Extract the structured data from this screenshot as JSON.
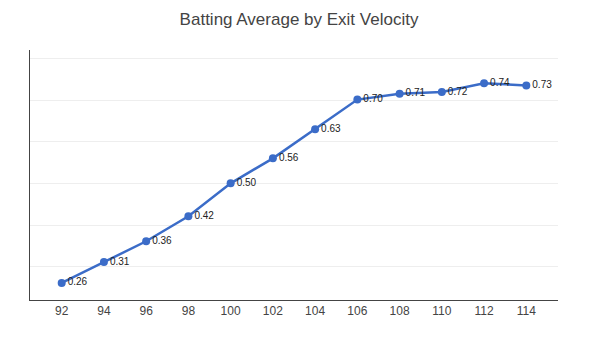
{
  "chart_data": {
    "type": "line",
    "title": "Batting Average by Exit Velocity",
    "x": [
      92,
      94,
      96,
      98,
      100,
      102,
      104,
      106,
      108,
      110,
      112,
      114
    ],
    "values": [
      0.261,
      0.311,
      0.361,
      0.421,
      0.5,
      0.56,
      0.63,
      0.701,
      0.715,
      0.719,
      0.74,
      0.735
    ],
    "value_labels": [
      "0.26",
      "0.31",
      "0.36",
      "0.42",
      "0.50",
      "0.56",
      "0.63",
      "0.70",
      "0.71",
      "0.72",
      "0.74",
      "0.73"
    ],
    "data_labels": true,
    "color": "#3B6CC8",
    "marker": "circle",
    "xlim": [
      90.5,
      115.5
    ],
    "xticks": [
      92,
      94,
      96,
      98,
      100,
      102,
      104,
      106,
      108,
      110,
      112,
      114
    ],
    "ylim": [
      0.22,
      0.82
    ],
    "yticks": [
      0.3,
      0.4,
      0.5,
      0.6,
      0.7,
      0.8
    ],
    "grid": true,
    "tick_labels": "x"
  }
}
